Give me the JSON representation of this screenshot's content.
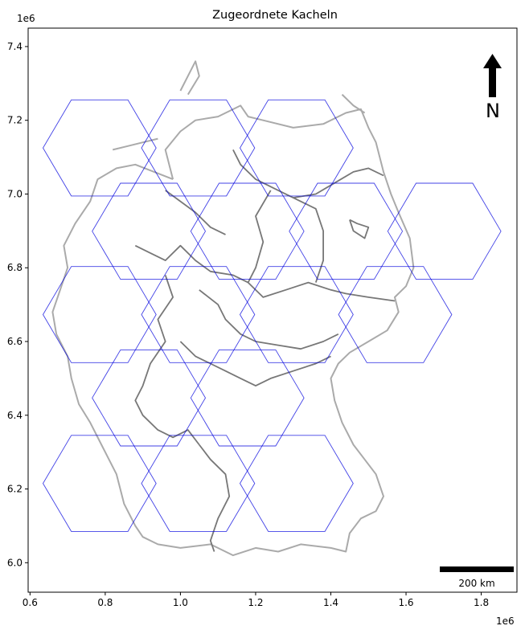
{
  "title": "Zugeordnete Kacheln",
  "axes": {
    "x_ticks": [
      0.6,
      0.8,
      1.0,
      1.2,
      1.4,
      1.6,
      1.8
    ],
    "x_tick_labels": [
      "0.6",
      "0.8",
      "1.0",
      "1.2",
      "1.4",
      "1.6",
      "1.8"
    ],
    "y_ticks": [
      6.0,
      6.2,
      6.4,
      6.6,
      6.8,
      7.0,
      7.2,
      7.4
    ],
    "y_tick_labels": [
      "6.0",
      "6.2",
      "6.4",
      "6.6",
      "6.8",
      "7.0",
      "7.2",
      "7.4"
    ],
    "x_offset_label": "1e6",
    "y_offset_label": "1e6",
    "xlim": [
      0.595,
      1.895
    ],
    "ylim": [
      5.92,
      7.45
    ]
  },
  "north_arrow": {
    "label": "N"
  },
  "scale_bar": {
    "label": "200 km",
    "length_1e6": 0.2
  },
  "colors": {
    "hex_edge": "#0000dd",
    "border_outer": "#aaaaaa",
    "border_inner": "#777777",
    "scale_bar": "#000000"
  },
  "hexagons": {
    "radius_1e6": 0.1505,
    "centers": [
      [
        0.785,
        7.125
      ],
      [
        1.047,
        7.125
      ],
      [
        1.309,
        7.125
      ],
      [
        0.916,
        6.899
      ],
      [
        1.178,
        6.899
      ],
      [
        1.44,
        6.899
      ],
      [
        1.702,
        6.899
      ],
      [
        0.785,
        6.673
      ],
      [
        1.047,
        6.673
      ],
      [
        1.309,
        6.673
      ],
      [
        1.571,
        6.673
      ],
      [
        0.916,
        6.447
      ],
      [
        1.178,
        6.447
      ],
      [
        0.785,
        6.215
      ],
      [
        1.047,
        6.215
      ],
      [
        1.309,
        6.215
      ]
    ]
  },
  "borders": {
    "outer": [
      [
        [
          0.98,
          7.04
        ],
        [
          0.96,
          7.12
        ],
        [
          1.0,
          7.17
        ],
        [
          1.04,
          7.2
        ],
        [
          1.1,
          7.21
        ],
        [
          1.16,
          7.24
        ],
        [
          1.18,
          7.21
        ],
        [
          1.22,
          7.2
        ],
        [
          1.3,
          7.18
        ],
        [
          1.38,
          7.19
        ],
        [
          1.44,
          7.22
        ],
        [
          1.48,
          7.23
        ],
        [
          1.5,
          7.18
        ],
        [
          1.52,
          7.14
        ],
        [
          1.54,
          7.06
        ],
        [
          1.56,
          7.0
        ],
        [
          1.58,
          6.95
        ],
        [
          1.61,
          6.88
        ],
        [
          1.62,
          6.8
        ],
        [
          1.6,
          6.75
        ],
        [
          1.57,
          6.72
        ],
        [
          1.58,
          6.68
        ],
        [
          1.55,
          6.63
        ],
        [
          1.5,
          6.6
        ],
        [
          1.45,
          6.57
        ],
        [
          1.42,
          6.54
        ],
        [
          1.4,
          6.5
        ],
        [
          1.41,
          6.44
        ],
        [
          1.43,
          6.38
        ],
        [
          1.46,
          6.32
        ],
        [
          1.49,
          6.28
        ],
        [
          1.52,
          6.24
        ],
        [
          1.54,
          6.18
        ],
        [
          1.52,
          6.14
        ],
        [
          1.48,
          6.12
        ],
        [
          1.45,
          6.08
        ],
        [
          1.44,
          6.03
        ],
        [
          1.4,
          6.04
        ],
        [
          1.32,
          6.05
        ],
        [
          1.26,
          6.03
        ],
        [
          1.2,
          6.04
        ],
        [
          1.14,
          6.02
        ],
        [
          1.08,
          6.05
        ],
        [
          1.0,
          6.04
        ],
        [
          0.94,
          6.05
        ],
        [
          0.9,
          6.07
        ],
        [
          0.88,
          6.1
        ],
        [
          0.85,
          6.16
        ],
        [
          0.83,
          6.24
        ],
        [
          0.79,
          6.32
        ],
        [
          0.76,
          6.38
        ],
        [
          0.73,
          6.43
        ],
        [
          0.71,
          6.5
        ],
        [
          0.7,
          6.56
        ],
        [
          0.67,
          6.62
        ],
        [
          0.66,
          6.68
        ],
        [
          0.68,
          6.74
        ],
        [
          0.7,
          6.8
        ],
        [
          0.69,
          6.86
        ],
        [
          0.72,
          6.92
        ],
        [
          0.76,
          6.98
        ],
        [
          0.78,
          7.04
        ],
        [
          0.83,
          7.07
        ],
        [
          0.88,
          7.08
        ],
        [
          0.93,
          7.06
        ],
        [
          0.98,
          7.04
        ]
      ],
      [
        [
          0.82,
          7.12
        ],
        [
          0.86,
          7.13
        ],
        [
          0.9,
          7.14
        ],
        [
          0.94,
          7.15
        ]
      ],
      [
        [
          1.0,
          7.28
        ],
        [
          1.02,
          7.32
        ],
        [
          1.04,
          7.36
        ],
        [
          1.05,
          7.32
        ],
        [
          1.02,
          7.27
        ]
      ],
      [
        [
          1.43,
          7.27
        ],
        [
          1.46,
          7.24
        ],
        [
          1.49,
          7.22
        ]
      ]
    ],
    "inner": [
      [
        [
          1.14,
          7.12
        ],
        [
          1.16,
          7.08
        ],
        [
          1.2,
          7.04
        ],
        [
          1.26,
          7.01
        ],
        [
          1.3,
          6.99
        ],
        [
          1.36,
          7.0
        ],
        [
          1.41,
          7.03
        ],
        [
          1.46,
          7.06
        ],
        [
          1.5,
          7.07
        ],
        [
          1.54,
          7.05
        ]
      ],
      [
        [
          1.24,
          7.01
        ],
        [
          1.2,
          6.94
        ],
        [
          1.22,
          6.87
        ],
        [
          1.2,
          6.8
        ],
        [
          1.18,
          6.76
        ],
        [
          1.22,
          6.72
        ],
        [
          1.28,
          6.74
        ],
        [
          1.34,
          6.76
        ],
        [
          1.4,
          6.74
        ],
        [
          1.44,
          6.73
        ],
        [
          1.5,
          6.72
        ],
        [
          1.57,
          6.71
        ]
      ],
      [
        [
          1.3,
          6.99
        ],
        [
          1.36,
          6.96
        ],
        [
          1.38,
          6.9
        ],
        [
          1.38,
          6.82
        ],
        [
          1.36,
          6.76
        ]
      ],
      [
        [
          0.88,
          6.86
        ],
        [
          0.92,
          6.84
        ],
        [
          0.96,
          6.82
        ],
        [
          1.0,
          6.86
        ],
        [
          1.04,
          6.82
        ],
        [
          1.08,
          6.79
        ],
        [
          1.14,
          6.78
        ],
        [
          1.18,
          6.76
        ]
      ],
      [
        [
          0.96,
          7.01
        ],
        [
          1.0,
          6.98
        ],
        [
          1.04,
          6.95
        ],
        [
          1.08,
          6.91
        ],
        [
          1.12,
          6.89
        ]
      ],
      [
        [
          0.96,
          6.78
        ],
        [
          0.98,
          6.72
        ],
        [
          0.94,
          6.66
        ],
        [
          0.96,
          6.6
        ],
        [
          0.92,
          6.54
        ],
        [
          0.9,
          6.48
        ],
        [
          0.88,
          6.44
        ],
        [
          0.9,
          6.4
        ],
        [
          0.94,
          6.36
        ],
        [
          0.98,
          6.34
        ],
        [
          1.02,
          6.36
        ],
        [
          1.05,
          6.32
        ]
      ],
      [
        [
          1.05,
          6.74
        ],
        [
          1.1,
          6.7
        ],
        [
          1.12,
          6.66
        ],
        [
          1.16,
          6.62
        ],
        [
          1.2,
          6.6
        ],
        [
          1.26,
          6.59
        ],
        [
          1.32,
          6.58
        ],
        [
          1.38,
          6.6
        ],
        [
          1.42,
          6.62
        ]
      ],
      [
        [
          1.0,
          6.6
        ],
        [
          1.04,
          6.56
        ],
        [
          1.08,
          6.54
        ],
        [
          1.12,
          6.52
        ],
        [
          1.16,
          6.5
        ],
        [
          1.2,
          6.48
        ],
        [
          1.24,
          6.5
        ],
        [
          1.3,
          6.52
        ],
        [
          1.36,
          6.54
        ],
        [
          1.4,
          6.56
        ]
      ],
      [
        [
          1.05,
          6.32
        ],
        [
          1.08,
          6.28
        ],
        [
          1.12,
          6.24
        ],
        [
          1.13,
          6.18
        ],
        [
          1.1,
          6.12
        ],
        [
          1.08,
          6.06
        ],
        [
          1.09,
          6.03
        ]
      ],
      [
        [
          1.45,
          6.93
        ],
        [
          1.46,
          6.9
        ],
        [
          1.49,
          6.88
        ],
        [
          1.5,
          6.91
        ],
        [
          1.47,
          6.92
        ],
        [
          1.45,
          6.93
        ]
      ]
    ]
  }
}
